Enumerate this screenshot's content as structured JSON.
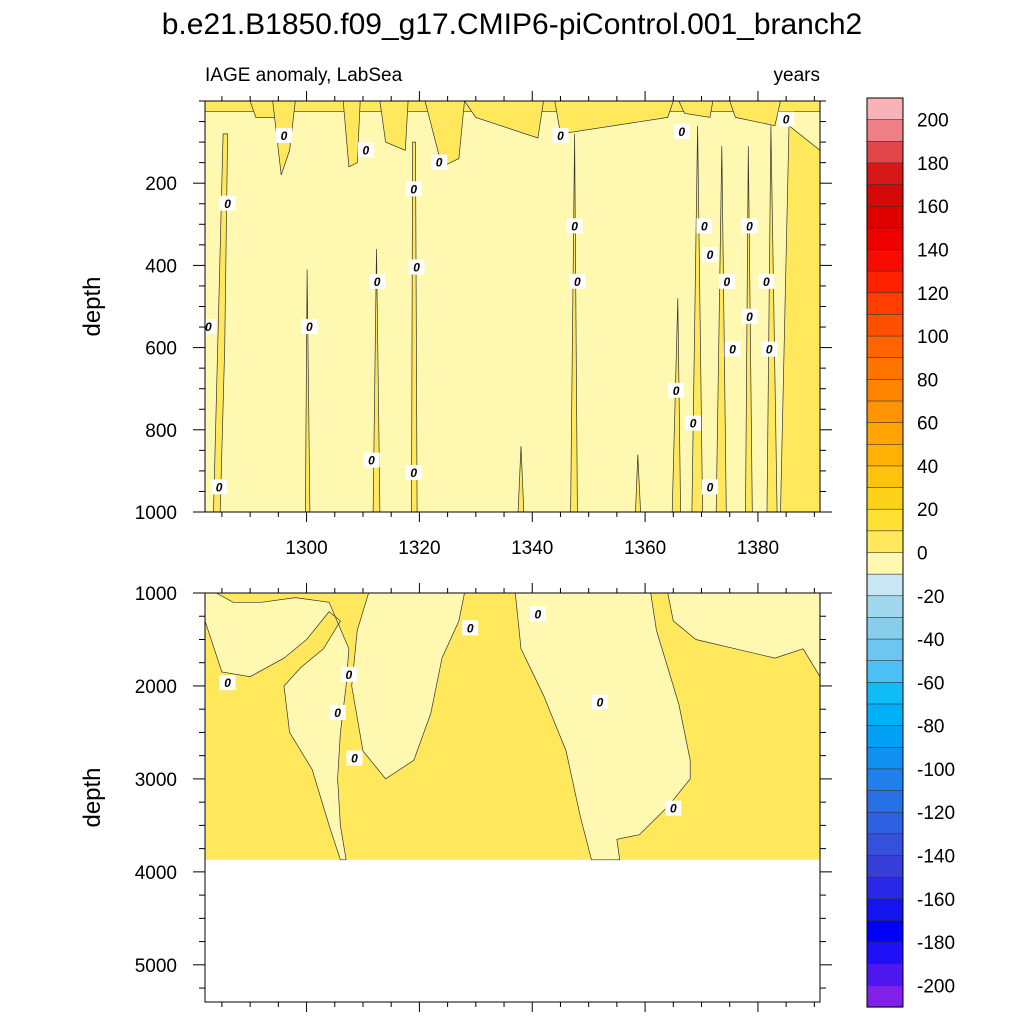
{
  "chart_data": {
    "type": "heatmap",
    "title": "b.e21.B1850.f09_g17.CMIP6-piControl.001_branch2",
    "left_string": "IAGE anomaly, LabSea",
    "right_string": "years",
    "contour_label": "0",
    "colorbar": {
      "levels": [
        -210,
        -200,
        -190,
        -180,
        -170,
        -160,
        -150,
        -140,
        -130,
        -120,
        -110,
        -100,
        -90,
        -80,
        -70,
        -60,
        -50,
        -40,
        -30,
        -20,
        -10,
        0,
        10,
        20,
        30,
        40,
        50,
        60,
        70,
        80,
        90,
        100,
        110,
        120,
        130,
        140,
        150,
        160,
        170,
        180,
        190,
        200,
        210
      ],
      "labels": [
        "200",
        "180",
        "160",
        "140",
        "120",
        "100",
        "80",
        "60",
        "40",
        "20",
        "0",
        "-20",
        "-40",
        "-60",
        "-80",
        "-100",
        "-120",
        "-140",
        "-160",
        "-180",
        "-200"
      ],
      "colors_top_to_bottom": [
        "#f7b3b8",
        "#ef7f85",
        "#e2464a",
        "#d61818",
        "#d60808",
        "#e00000",
        "#ef0000",
        "#f60c00",
        "#ff2200",
        "#ff3e00",
        "#ff5000",
        "#ff6400",
        "#ff7400",
        "#ff8400",
        "#ff9400",
        "#ffa400",
        "#ffb000",
        "#ffc20c",
        "#ffd21a",
        "#ffe034",
        "#ffe85c",
        "#fff8b0",
        "#c8e6f4",
        "#a0d8ee",
        "#86ceeb",
        "#6cc6ef",
        "#4cc0f4",
        "#10bcf8",
        "#00b0f6",
        "#00a0f4",
        "#1090f0",
        "#2080ec",
        "#2870e6",
        "#2e60e2",
        "#3450dc",
        "#3640d8",
        "#2828e6",
        "#1414f0",
        "#0000fc",
        "#2010f8",
        "#5018f0",
        "#8020e8"
      ]
    },
    "panels": [
      {
        "name": "upper",
        "x_range": [
          1282,
          1391
        ],
        "y_range": [
          0,
          1000
        ],
        "y_reversed": true,
        "ylabel": "depth",
        "xticks": [
          1300,
          1320,
          1340,
          1360,
          1380
        ],
        "xtick_labels": [
          "1300",
          "1320",
          "1340",
          "1360",
          "1380"
        ],
        "yticks": [
          200,
          400,
          600,
          800,
          1000
        ],
        "ytick_labels": [
          "200",
          "400",
          "600",
          "800",
          "1000"
        ],
        "background_value": -5,
        "positive_regions": [
          {
            "x": [
              1283.5,
              1284.7,
              1285.5,
              1286.0,
              1285.2
            ],
            "y": [
              1000,
              1000,
              600,
              80,
              80
            ]
          },
          {
            "x": [
              1299.8,
              1300.6,
              1300.1
            ],
            "y": [
              1000,
              1000,
              410
            ]
          },
          {
            "x": [
              1311.8,
              1313.0,
              1312.4
            ],
            "y": [
              1000,
              1000,
              360
            ]
          },
          {
            "x": [
              1318.6,
              1319.6,
              1319.3,
              1318.8
            ],
            "y": [
              1000,
              1000,
              100,
              100
            ]
          },
          {
            "x": [
              1337.5,
              1338.5,
              1338.0
            ],
            "y": [
              1000,
              1000,
              840
            ]
          },
          {
            "x": [
              1346.8,
              1348.0,
              1347.5
            ],
            "y": [
              1000,
              1000,
              80
            ]
          },
          {
            "x": [
              1358.3,
              1359.2,
              1358.7
            ],
            "y": [
              1000,
              1000,
              860
            ]
          },
          {
            "x": [
              1364.8,
              1366.3,
              1365.8
            ],
            "y": [
              1000,
              1000,
              480
            ]
          },
          {
            "x": [
              1368.3,
              1370.2,
              1369.3
            ],
            "y": [
              1000,
              1000,
              60
            ]
          },
          {
            "x": [
              1372.6,
              1374.4,
              1373.6
            ],
            "y": [
              1000,
              1000,
              110
            ]
          },
          {
            "x": [
              1377.8,
              1379.0,
              1378.3
            ],
            "y": [
              1000,
              1000,
              110
            ]
          },
          {
            "x": [
              1381.6,
              1383.4,
              1382.3
            ],
            "y": [
              1000,
              1000,
              60
            ]
          },
          {
            "x": [
              1384.0,
              1391.0,
              1391.0,
              1385.5
            ],
            "y": [
              1000,
              1000,
              120,
              60
            ]
          },
          {
            "x": [
              1282,
              1391,
              1391,
              1282
            ],
            "y": [
              0,
              0,
              25,
              25
            ]
          },
          {
            "x": [
              1290.0,
              1295.0,
              1294.5,
              1291.0
            ],
            "y": [
              0,
              0,
              40,
              40
            ]
          },
          {
            "x": [
              1294.0,
              1298.0,
              1297.0,
              1295.5
            ],
            "y": [
              0,
              0,
              120,
              180
            ]
          },
          {
            "x": [
              1306.5,
              1309.5,
              1309.0,
              1307.5
            ],
            "y": [
              0,
              0,
              150,
              160
            ]
          },
          {
            "x": [
              1313.0,
              1318.0,
              1317.5,
              1314.0
            ],
            "y": [
              0,
              0,
              120,
              100
            ]
          },
          {
            "x": [
              1321.0,
              1328.0,
              1327.0,
              1324.0
            ],
            "y": [
              0,
              0,
              140,
              160
            ]
          },
          {
            "x": [
              1328.0,
              1342.0,
              1341.0,
              1330.0
            ],
            "y": [
              0,
              0,
              90,
              40
            ]
          },
          {
            "x": [
              1344.0,
              1365.0,
              1364.0,
              1345.0
            ],
            "y": [
              0,
              0,
              40,
              80
            ]
          },
          {
            "x": [
              1366.0,
              1372.0,
              1371.5,
              1367.0
            ],
            "y": [
              0,
              0,
              40,
              30
            ]
          },
          {
            "x": [
              1375.0,
              1384.0,
              1383.0,
              1376.0
            ],
            "y": [
              0,
              0,
              60,
              40
            ]
          }
        ],
        "zero_labels": [
          {
            "x": 1296,
            "y": 85
          },
          {
            "x": 1310.5,
            "y": 120
          },
          {
            "x": 1323.5,
            "y": 150
          },
          {
            "x": 1286,
            "y": 250
          },
          {
            "x": 1282.6,
            "y": 550
          },
          {
            "x": 1300.5,
            "y": 550
          },
          {
            "x": 1319,
            "y": 215
          },
          {
            "x": 1319.5,
            "y": 405
          },
          {
            "x": 1312.5,
            "y": 440
          },
          {
            "x": 1311.5,
            "y": 875
          },
          {
            "x": 1319,
            "y": 905
          },
          {
            "x": 1284.5,
            "y": 940
          },
          {
            "x": 1345,
            "y": 85
          },
          {
            "x": 1347.5,
            "y": 305
          },
          {
            "x": 1348,
            "y": 440
          },
          {
            "x": 1366.5,
            "y": 75
          },
          {
            "x": 1370.5,
            "y": 305
          },
          {
            "x": 1371.5,
            "y": 375
          },
          {
            "x": 1374.5,
            "y": 440
          },
          {
            "x": 1375.5,
            "y": 605
          },
          {
            "x": 1378.5,
            "y": 305
          },
          {
            "x": 1378.5,
            "y": 525
          },
          {
            "x": 1381.5,
            "y": 440
          },
          {
            "x": 1382,
            "y": 605
          },
          {
            "x": 1365.5,
            "y": 705
          },
          {
            "x": 1368.5,
            "y": 785
          },
          {
            "x": 1371.5,
            "y": 940
          },
          {
            "x": 1385,
            "y": 45
          }
        ]
      },
      {
        "name": "lower",
        "x_range": [
          1282,
          1391
        ],
        "y_range": [
          1000,
          5400
        ],
        "y_reversed": true,
        "ylabel": "depth",
        "yticks": [
          1000,
          2000,
          3000,
          4000,
          5000
        ],
        "ytick_labels": [
          "1000",
          "2000",
          "3000",
          "4000",
          "5000"
        ],
        "data_bottom": 3870,
        "background_value": 5,
        "negative_regions": [
          {
            "x": [
              1282.0,
              1284.0,
              1287.0,
              1292.0,
              1298.0,
              1304.0,
              1307.5,
              1307.0,
              1306.0,
              1305.5,
              1306.0,
              1307.0,
              1306.0,
              1304.0,
              1301.0,
              1297.0,
              1296.0,
              1299.0,
              1303.0,
              1306.0,
              1304.0,
              1300.0,
              1296.0,
              1290.0,
              1285.0,
              1282.0
            ],
            "y": [
              1000,
              1000,
              1100,
              1100,
              1050,
              1100,
              1600,
              2000,
              2500,
              3000,
              3500,
              3870,
              3870,
              3500,
              2900,
              2500,
              2000,
              1800,
              1600,
              1300,
              1200,
              1500,
              1700,
              1900,
              1850,
              1300
            ]
          },
          {
            "x": [
              1311.0,
              1328.0,
              1327.0,
              1324.0,
              1322.0,
              1319.0,
              1314.0,
              1310.0,
              1308.0,
              1309.0
            ],
            "y": [
              1000,
              1000,
              1300,
              1700,
              2300,
              2800,
              3000,
              2700,
              2000,
              1400
            ]
          },
          {
            "x": [
              1337.0,
              1361.0,
              1362.0,
              1366.0,
              1368.0,
              1368.0,
              1364.0,
              1359.0,
              1355.0,
              1355.5,
              1350.5,
              1348.5,
              1346.0,
              1342.0,
              1338.0
            ],
            "y": [
              1000,
              1000,
              1400,
              2200,
              2800,
              3000,
              3300,
              3600,
              3650,
              3870,
              3870,
              3400,
              2700,
              2100,
              1600
            ]
          },
          {
            "x": [
              1364.0,
              1391.0,
              1391.0,
              1388.0,
              1383.0,
              1376.0,
              1369.0,
              1365.0
            ],
            "y": [
              1000,
              1000,
              1900,
              1600,
              1700,
              1600,
              1500,
              1300
            ]
          }
        ],
        "zero_labels": [
          {
            "x": 1286,
            "y": 1970
          },
          {
            "x": 1305.5,
            "y": 2290
          },
          {
            "x": 1307.5,
            "y": 1880
          },
          {
            "x": 1308.5,
            "y": 2780
          },
          {
            "x": 1329,
            "y": 1380
          },
          {
            "x": 1341,
            "y": 1230
          },
          {
            "x": 1352,
            "y": 2180
          },
          {
            "x": 1365,
            "y": 3320
          }
        ]
      }
    ]
  }
}
